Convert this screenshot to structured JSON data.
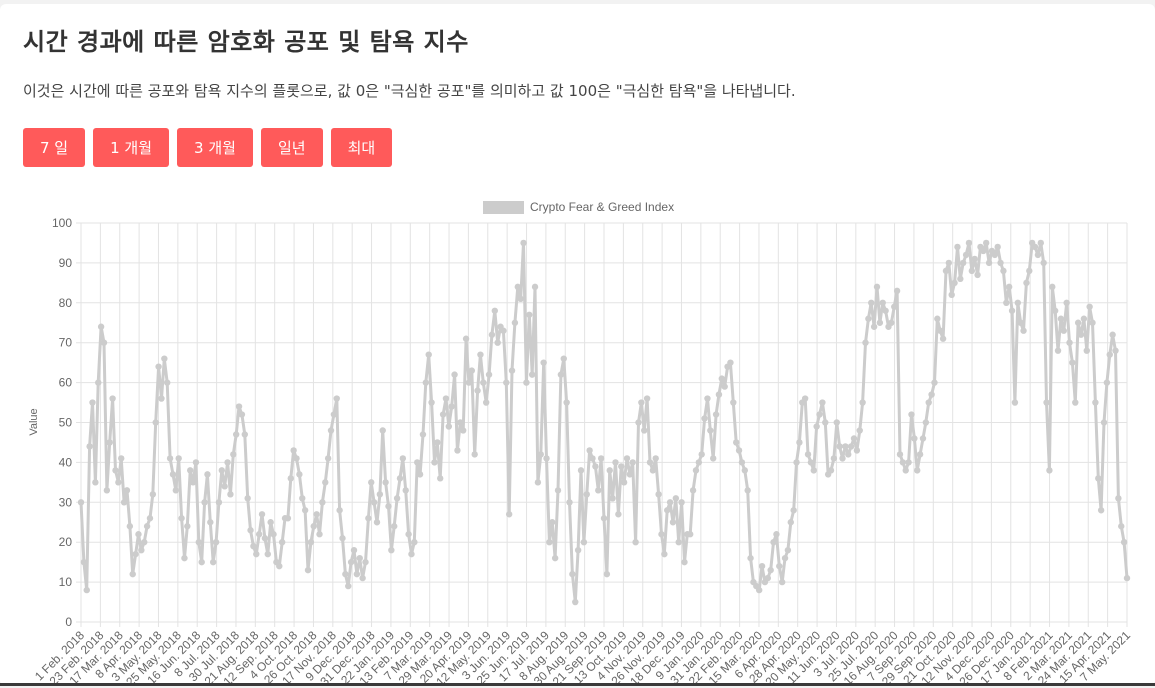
{
  "page": {
    "title": "시간 경과에 따른 암호화 공포 및 탐욕 지수",
    "description": "이것은 시간에 따른 공포와 탐욕 지수의 플롯으로, 값 0은 \"극심한 공포\"를 의미하고 값 100은 \"극심한 탐욕\"을 나타냅니다.",
    "buttons": [
      "7 일",
      "1 개월",
      "3 개월",
      "일년",
      "최대"
    ]
  },
  "colors": {
    "button_bg": "#ff5a5a",
    "series": "#cccccc",
    "grid": "#e3e3e3",
    "tick_text": "#666666"
  },
  "chart_data": {
    "type": "line",
    "legend": "Crypto Fear & Greed Index",
    "legend_position": "top-center",
    "ylabel": "Value",
    "xlabel": "",
    "ylim": [
      0,
      100
    ],
    "y_ticks": [
      0,
      10,
      20,
      30,
      40,
      50,
      60,
      70,
      80,
      90,
      100
    ],
    "grid": true,
    "x_tick_labels": [
      "1 Feb. 2018",
      "23 Feb. 2018",
      "17 Mar. 2018",
      "8 Apr. 2018",
      "3 May. 2018",
      "25 May. 2018",
      "16 Jun. 2018",
      "8 Jul. 2018",
      "30 Jul. 2018",
      "21 Aug. 2018",
      "12 Sep. 2018",
      "4 Oct. 2018",
      "26 Oct. 2018",
      "17 Nov. 2018",
      "9 Dec. 2018",
      "31 Dec. 2018",
      "22 Jan. 2019",
      "13 Feb. 2019",
      "7 Mar. 2019",
      "29 Mar. 2019",
      "20 Apr. 2019",
      "12 May. 2019",
      "3 Jun. 2019",
      "25 Jun. 2019",
      "17 Jul. 2019",
      "8 Aug. 2019",
      "30 Aug. 2019",
      "21 Sep. 2019",
      "13 Oct. 2019",
      "4 Nov. 2019",
      "26 Nov. 2019",
      "18 Dec. 2019",
      "9 Jan. 2020",
      "31 Jan. 2020",
      "22 Feb. 2020",
      "15 Mar. 2020",
      "6 Apr. 2020",
      "28 Apr. 2020",
      "20 May. 2020",
      "11 Jun. 2020",
      "3 Jul. 2020",
      "25 Jul. 2020",
      "16 Aug. 2020",
      "7 Sep. 2020",
      "29 Sep. 2020",
      "21 Oct. 2020",
      "12 Nov. 2020",
      "4 Dec. 2020",
      "26 Dec. 2020",
      "17 Jan. 2021",
      "8 Feb. 2021",
      "2 Mar. 2021",
      "24 Mar. 2021",
      "15 Apr. 2021",
      "7 May. 2021"
    ],
    "series": [
      {
        "name": "Crypto Fear & Greed Index",
        "values": [
          30,
          15,
          8,
          44,
          55,
          35,
          60,
          74,
          70,
          33,
          45,
          56,
          38,
          35,
          41,
          30,
          33,
          24,
          12,
          17,
          22,
          18,
          20,
          24,
          26,
          32,
          50,
          64,
          56,
          66,
          60,
          41,
          37,
          33,
          41,
          26,
          16,
          24,
          38,
          35,
          40,
          20,
          15,
          30,
          37,
          25,
          15,
          20,
          30,
          38,
          34,
          40,
          32,
          42,
          47,
          54,
          52,
          47,
          31,
          23,
          19,
          17,
          22,
          27,
          21,
          17,
          25,
          22,
          15,
          14,
          20,
          26,
          26,
          36,
          43,
          41,
          37,
          31,
          28,
          13,
          20,
          24,
          27,
          22,
          30,
          35,
          41,
          48,
          52,
          56,
          28,
          21,
          12,
          9,
          15,
          18,
          12,
          16,
          11,
          15,
          26,
          35,
          30,
          25,
          32,
          48,
          35,
          29,
          18,
          24,
          31,
          36,
          41,
          33,
          22,
          17,
          20,
          40,
          37,
          47,
          60,
          67,
          55,
          40,
          45,
          36,
          52,
          56,
          49,
          54,
          62,
          43,
          50,
          48,
          71,
          60,
          63,
          42,
          58,
          67,
          60,
          55,
          62,
          72,
          78,
          70,
          74,
          73,
          60,
          27,
          63,
          75,
          84,
          81,
          95,
          60,
          77,
          62,
          84,
          35,
          42,
          65,
          41,
          20,
          25,
          16,
          33,
          62,
          66,
          55,
          30,
          12,
          5,
          18,
          38,
          20,
          32,
          43,
          41,
          39,
          33,
          41,
          26,
          12,
          38,
          31,
          40,
          27,
          39,
          35,
          41,
          37,
          40,
          20,
          50,
          55,
          48,
          56,
          40,
          38,
          41,
          32,
          22,
          17,
          28,
          30,
          25,
          31,
          20,
          30,
          15,
          22,
          22,
          33,
          38,
          40,
          42,
          51,
          56,
          48,
          41,
          52,
          57,
          61,
          59,
          64,
          65,
          55,
          45,
          43,
          40,
          38,
          33,
          16,
          10,
          9,
          8,
          14,
          10,
          11,
          13,
          20,
          22,
          14,
          10,
          16,
          18,
          25,
          28,
          40,
          45,
          55,
          56,
          42,
          40,
          38,
          49,
          52,
          55,
          50,
          37,
          38,
          41,
          50,
          44,
          41,
          44,
          42,
          44,
          46,
          43,
          48,
          55,
          70,
          76,
          80,
          74,
          84,
          75,
          80,
          78,
          74,
          75,
          79,
          83,
          42,
          40,
          38,
          40,
          52,
          46,
          38,
          42,
          46,
          50,
          55,
          57,
          60,
          76,
          73,
          71,
          88,
          90,
          82,
          85,
          94,
          86,
          90,
          92,
          95,
          88,
          91,
          87,
          94,
          93,
          95,
          90,
          93,
          92,
          94,
          90,
          88,
          80,
          84,
          78,
          55,
          80,
          75,
          73,
          85,
          88,
          95,
          94,
          92,
          95,
          90,
          55,
          38,
          84,
          78,
          68,
          76,
          73,
          80,
          70,
          65,
          55,
          75,
          72,
          76,
          68,
          79,
          75,
          55,
          36,
          28,
          50,
          60,
          67,
          72,
          68,
          31,
          24,
          20,
          11
        ]
      }
    ]
  }
}
